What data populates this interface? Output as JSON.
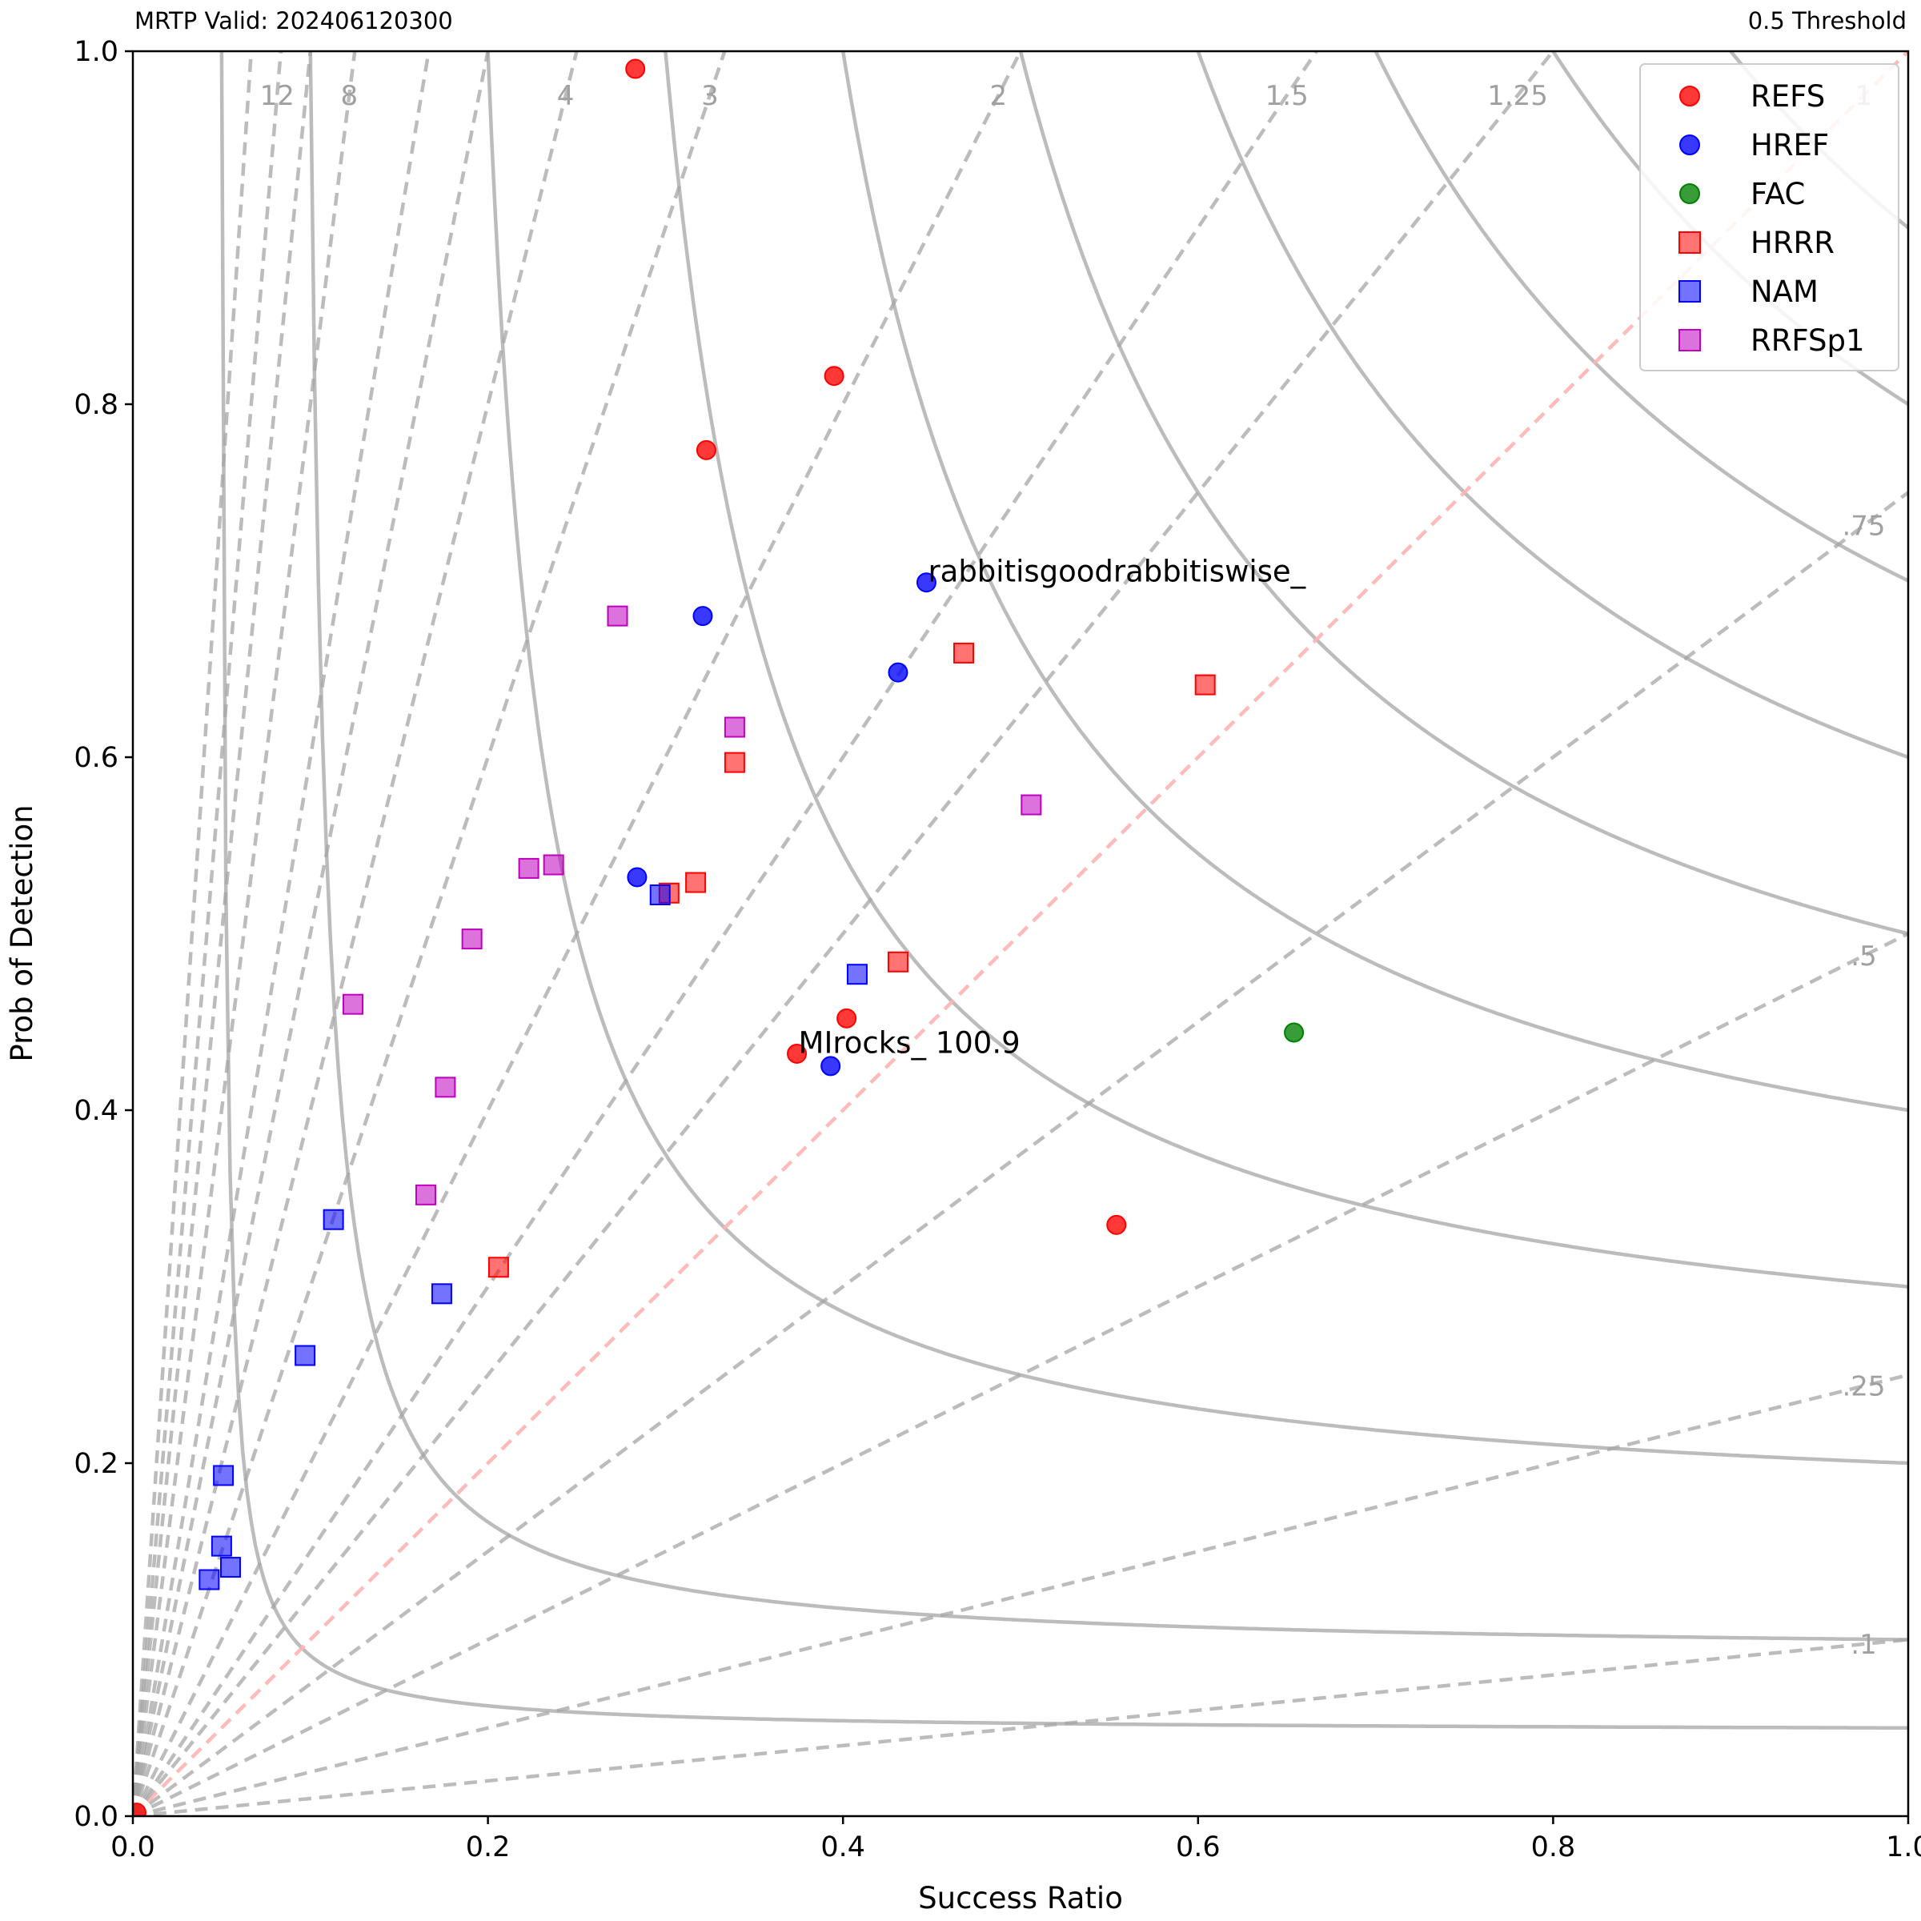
{
  "header": {
    "left_text": "MRTP Valid: 202406120300",
    "right_text": "0.5 Threshold"
  },
  "chart_data": {
    "type": "scatter",
    "xlabel": "Success Ratio",
    "ylabel": "Prob of Detection",
    "xlim": [
      0,
      1
    ],
    "ylim": [
      0,
      1
    ],
    "x_ticks": [
      "0.0",
      "0.2",
      "0.4",
      "0.6",
      "0.8",
      "1.0"
    ],
    "y_ticks": [
      "0.0",
      "0.2",
      "0.4",
      "0.6",
      "0.8",
      "1.0"
    ],
    "grid": false,
    "legend_position": "top-right",
    "background_lines": {
      "csi_contours": [
        0.05,
        0.1,
        0.2,
        0.3,
        0.4,
        0.5,
        0.6,
        0.7,
        0.8,
        0.9
      ],
      "csi_line_color": "#a6a6a6",
      "bias_lines": [
        0.1,
        0.25,
        0.5,
        0.75,
        1,
        1.25,
        1.5,
        2,
        3,
        4,
        5,
        6,
        8,
        10,
        12,
        15
      ],
      "bias_line_color": "#a6a6a6",
      "bias_one_color": "#ffb3b3",
      "bias_labels": [
        {
          "text": "12",
          "bias": 12
        },
        {
          "text": "8",
          "bias": 8
        },
        {
          "text": "4",
          "bias": 4
        },
        {
          "text": "3",
          "bias": 3
        },
        {
          "text": "2",
          "bias": 2
        },
        {
          "text": "1.5",
          "bias": 1.5
        },
        {
          "text": "1.25",
          "bias": 1.25
        },
        {
          "text": "1",
          "bias": 1
        },
        {
          "text": ".75",
          "bias": 0.75
        },
        {
          "text": ".5",
          "bias": 0.5
        },
        {
          "text": ".25",
          "bias": 0.25
        },
        {
          "text": ".1",
          "bias": 0.1
        }
      ]
    },
    "series": [
      {
        "name": "REFS",
        "marker": "circle",
        "color": "#ff0000",
        "points": [
          [
            0.283,
            0.99
          ],
          [
            0.395,
            0.816
          ],
          [
            0.323,
            0.774
          ],
          [
            0.402,
            0.452
          ],
          [
            0.374,
            0.432
          ],
          [
            0.554,
            0.335
          ],
          [
            0.002,
            0.002
          ]
        ]
      },
      {
        "name": "HREF",
        "marker": "circle",
        "color": "#0000ff",
        "points": [
          [
            0.447,
            0.699
          ],
          [
            0.321,
            0.68
          ],
          [
            0.431,
            0.648
          ],
          [
            0.284,
            0.532
          ],
          [
            0.393,
            0.425
          ]
        ]
      },
      {
        "name": "FAC",
        "marker": "circle",
        "color": "#008000",
        "points": [
          [
            0.654,
            0.444
          ]
        ]
      },
      {
        "name": "HRRR",
        "marker": "square",
        "color": "#ff0000",
        "points": [
          [
            0.468,
            0.659
          ],
          [
            0.604,
            0.641
          ],
          [
            0.339,
            0.597
          ],
          [
            0.317,
            0.529
          ],
          [
            0.302,
            0.523
          ],
          [
            0.431,
            0.484
          ],
          [
            0.206,
            0.311
          ]
        ]
      },
      {
        "name": "NAM",
        "marker": "square",
        "color": "#0000ff",
        "points": [
          [
            0.297,
            0.522
          ],
          [
            0.408,
            0.477
          ],
          [
            0.113,
            0.338
          ],
          [
            0.174,
            0.296
          ],
          [
            0.097,
            0.261
          ],
          [
            0.051,
            0.193
          ],
          [
            0.05,
            0.153
          ],
          [
            0.055,
            0.141
          ],
          [
            0.043,
            0.134
          ]
        ]
      },
      {
        "name": "RRFSp1",
        "marker": "square",
        "color": "#bf00bf",
        "points": [
          [
            0.273,
            0.68
          ],
          [
            0.339,
            0.617
          ],
          [
            0.506,
            0.573
          ],
          [
            0.237,
            0.539
          ],
          [
            0.223,
            0.537
          ],
          [
            0.191,
            0.497
          ],
          [
            0.124,
            0.46
          ],
          [
            0.176,
            0.413
          ],
          [
            0.165,
            0.352
          ]
        ]
      }
    ],
    "annotations": [
      {
        "text": "rabbitisgoodrabbitiswise_",
        "x": 0.447,
        "y": 0.699
      },
      {
        "text": "MIrocks_ 100.9",
        "x": 0.374,
        "y": 0.432
      }
    ]
  }
}
